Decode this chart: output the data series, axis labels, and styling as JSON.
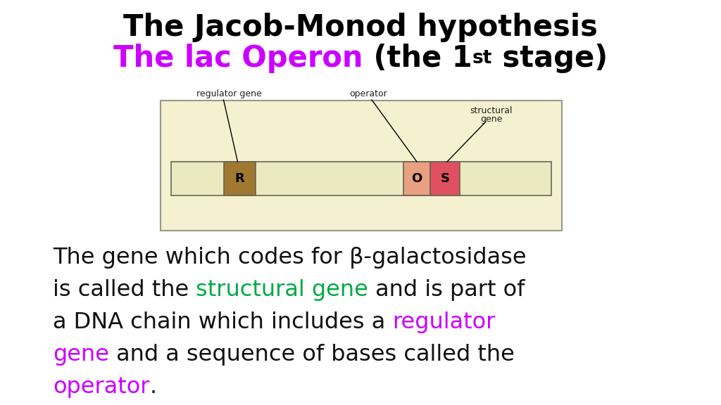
{
  "title_line1": "The Jacob-Monod hypothesis",
  "title_line2_purple": "The lac Operon",
  "title_line2_b1": " (the 1",
  "title_line2_super": "st",
  "title_line2_end": " stage)",
  "title_fontsize": 30,
  "bg_color": "#ffffff",
  "diagram_bg": "#f5f0d0",
  "diagram_border": "#999988",
  "body_text_color": "#111111",
  "purple_color": "#cc00ff",
  "green_color": "#00aa44",
  "bar_bg": "#ece8c0",
  "bar_border": "#666655",
  "R_color": "#a07830",
  "O_color": "#e8a080",
  "S_color": "#e05060",
  "label_fontsize": 9,
  "body_fontsize": 23,
  "font_family": "Comic Sans MS"
}
